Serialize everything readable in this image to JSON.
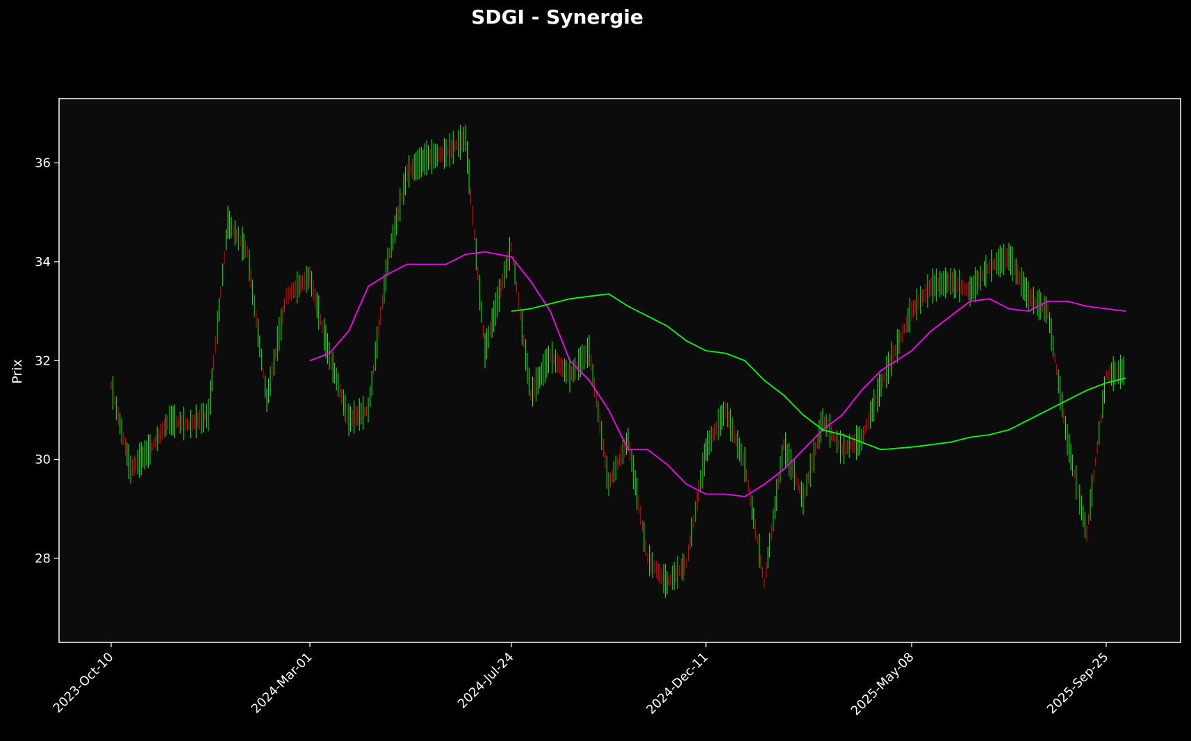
{
  "chart_data": {
    "type": "line",
    "subtype": "ohlc-bars-with-moving-averages",
    "title": "SDGI - Synergie",
    "xlabel": "",
    "ylabel": "Prix",
    "ylim": [
      26.3,
      37.3
    ],
    "y_ticks": [
      28,
      30,
      32,
      34,
      36
    ],
    "x_ticks": [
      "2023-Oct-10",
      "2024-Mar-01",
      "2024-Jul-24",
      "2024-Dec-11",
      "2025-May-08",
      "2025-Sep-25"
    ],
    "grid": false,
    "up_color": "#00ff00",
    "down_color": "#ff0000",
    "background": "#0c0c0c",
    "price": {
      "dates": [
        "2023-10-10",
        "2023-10-24",
        "2023-11-07",
        "2023-11-21",
        "2023-12-05",
        "2023-12-19",
        "2024-01-02",
        "2024-01-16",
        "2024-01-30",
        "2024-02-13",
        "2024-03-01",
        "2024-03-15",
        "2024-03-29",
        "2024-04-12",
        "2024-04-26",
        "2024-05-10",
        "2024-05-24",
        "2024-06-07",
        "2024-06-21",
        "2024-07-05",
        "2024-07-24",
        "2024-08-07",
        "2024-08-21",
        "2024-09-04",
        "2024-09-18",
        "2024-10-02",
        "2024-10-16",
        "2024-10-30",
        "2024-11-13",
        "2024-11-27",
        "2024-12-11",
        "2024-12-25",
        "2025-01-08",
        "2025-01-22",
        "2025-02-05",
        "2025-02-19",
        "2025-03-05",
        "2025-03-19",
        "2025-04-02",
        "2025-04-16",
        "2025-05-08",
        "2025-05-22",
        "2025-06-05",
        "2025-06-19",
        "2025-07-03",
        "2025-07-17",
        "2025-07-31",
        "2025-08-14",
        "2025-08-28",
        "2025-09-11",
        "2025-09-25",
        "2025-10-09"
      ],
      "close": [
        31.5,
        29.8,
        30.2,
        30.8,
        30.7,
        30.9,
        34.8,
        34.2,
        31.2,
        33.3,
        33.7,
        32.1,
        30.8,
        31.0,
        34.0,
        35.8,
        36.1,
        36.2,
        36.5,
        32.2,
        34.3,
        31.3,
        32.1,
        31.7,
        32.2,
        29.5,
        30.4,
        28.0,
        27.5,
        27.9,
        30.2,
        31.0,
        29.9,
        27.5,
        30.3,
        29.2,
        30.8,
        30.2,
        30.4,
        31.5,
        33.0,
        33.5,
        33.6,
        33.4,
        33.9,
        34.1,
        33.3,
        33.0,
        30.4,
        28.5,
        31.7,
        31.8
      ]
    },
    "series": [
      {
        "color": "#ff00ff",
        "x": [
          "2024-03-01",
          "2024-03-15",
          "2024-03-29",
          "2024-04-12",
          "2024-04-26",
          "2024-05-10",
          "2024-05-24",
          "2024-06-07",
          "2024-06-21",
          "2024-07-05",
          "2024-07-24",
          "2024-08-07",
          "2024-08-21",
          "2024-09-04",
          "2024-09-18",
          "2024-10-02",
          "2024-10-16",
          "2024-10-30",
          "2024-11-13",
          "2024-11-27",
          "2024-12-11",
          "2024-12-25",
          "2025-01-08",
          "2025-01-22",
          "2025-02-05",
          "2025-02-19",
          "2025-03-05",
          "2025-03-19",
          "2025-04-02",
          "2025-04-16",
          "2025-05-08",
          "2025-05-22",
          "2025-06-05",
          "2025-06-19",
          "2025-07-03",
          "2025-07-17",
          "2025-07-31",
          "2025-08-14",
          "2025-08-28",
          "2025-09-11",
          "2025-09-25",
          "2025-10-09"
        ],
        "values": [
          32.0,
          32.15,
          32.6,
          33.5,
          33.75,
          33.95,
          33.95,
          33.95,
          34.15,
          34.2,
          34.1,
          33.6,
          33.0,
          32.0,
          31.6,
          31.0,
          30.2,
          30.2,
          29.9,
          29.5,
          29.3,
          29.3,
          29.25,
          29.5,
          29.8,
          30.2,
          30.6,
          30.9,
          31.4,
          31.8,
          32.2,
          32.6,
          32.9,
          33.2,
          33.25,
          33.05,
          33.0,
          33.2,
          33.2,
          33.1,
          33.05,
          33.0
        ]
      },
      {
        "color": "#00ff00",
        "x": [
          "2024-07-24",
          "2024-08-07",
          "2024-08-21",
          "2024-09-04",
          "2024-09-18",
          "2024-10-02",
          "2024-10-16",
          "2024-10-30",
          "2024-11-13",
          "2024-11-27",
          "2024-12-11",
          "2024-12-25",
          "2025-01-08",
          "2025-01-22",
          "2025-02-05",
          "2025-02-19",
          "2025-03-05",
          "2025-03-19",
          "2025-04-02",
          "2025-04-16",
          "2025-05-08",
          "2025-05-22",
          "2025-06-05",
          "2025-06-19",
          "2025-07-03",
          "2025-07-17",
          "2025-07-31",
          "2025-08-14",
          "2025-08-28",
          "2025-09-11",
          "2025-09-25",
          "2025-10-09"
        ],
        "values": [
          33.0,
          33.05,
          33.15,
          33.25,
          33.3,
          33.35,
          33.1,
          32.9,
          32.7,
          32.4,
          32.2,
          32.15,
          32.0,
          31.6,
          31.3,
          30.9,
          30.6,
          30.5,
          30.35,
          30.2,
          30.25,
          30.3,
          30.35,
          30.45,
          30.5,
          30.6,
          30.8,
          31.0,
          31.2,
          31.4,
          31.55,
          31.65
        ]
      }
    ]
  }
}
